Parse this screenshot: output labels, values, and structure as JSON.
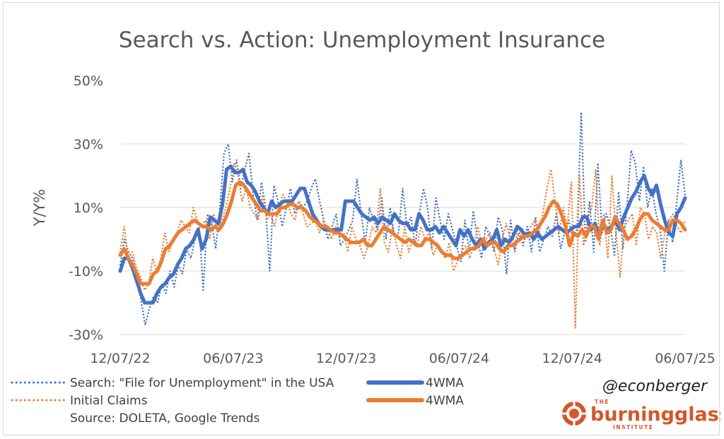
{
  "chart_data": {
    "type": "line",
    "title": "Search vs. Action: Unemployment Insurance",
    "ylabel": "Y/Y%",
    "xlabel": "",
    "ylim": [
      -30,
      50
    ],
    "y_ticks": [
      "50%",
      "30%",
      "10%",
      "-10%",
      "-30%"
    ],
    "y_tick_values": [
      50,
      30,
      10,
      -10,
      -30
    ],
    "x_ticks": [
      "12/07/22",
      "06/07/23",
      "12/07/23",
      "06/07/24",
      "12/07/24",
      "06/07/25"
    ],
    "x_tick_values": [
      0,
      26,
      52,
      78,
      104,
      130
    ],
    "x_unit": "weeks",
    "grid": "horizontal",
    "legend_position": "bottom",
    "series": [
      {
        "name": "Search: \"File for Unemployment\" in the USA",
        "style": "dotted",
        "color": "#4472c4",
        "values": [
          -8,
          0,
          -4,
          -6,
          -12,
          -19,
          -27,
          -22,
          -18,
          -20,
          -14,
          -17,
          -10,
          -15,
          -8,
          -11,
          -3,
          -6,
          0,
          4,
          -16,
          8,
          5,
          -3,
          10,
          27,
          30,
          18,
          25,
          16,
          22,
          27,
          14,
          6,
          18,
          10,
          -10,
          17,
          12,
          4,
          10,
          16,
          8,
          12,
          10,
          12,
          16,
          19,
          12,
          6,
          0,
          4,
          8,
          -2,
          0,
          3,
          6,
          19,
          8,
          -1,
          10,
          6,
          3,
          13,
          0,
          10,
          1,
          2,
          16,
          4,
          7,
          -2,
          8,
          16,
          10,
          -3,
          13,
          6,
          0,
          8,
          3,
          -2,
          -7,
          6,
          -4,
          9,
          0,
          -6,
          4,
          1,
          -4,
          7,
          3,
          -11,
          6,
          -4,
          2,
          -2,
          4,
          -4,
          7,
          -4,
          0,
          4,
          1,
          8,
          -3,
          2,
          6,
          0,
          3,
          40,
          -1,
          12,
          -4,
          24,
          2,
          8,
          4,
          -5,
          15,
          -3,
          10,
          28,
          24,
          12,
          23,
          10,
          16,
          8,
          3,
          -10,
          6,
          -1,
          12,
          25,
          14
        ],
        "smoothed_name": "4WMA",
        "smoothed": [
          -10,
          -6,
          -6,
          -9,
          -13,
          -17,
          -20,
          -20,
          -20,
          -17,
          -15,
          -14,
          -12,
          -11,
          -8,
          -6,
          -3,
          -2,
          0,
          3,
          -3,
          0,
          7,
          6,
          5,
          11,
          22,
          23,
          21,
          21,
          22,
          18,
          17,
          15,
          12,
          10,
          8,
          12,
          10,
          11,
          12,
          12,
          12,
          14,
          16,
          16,
          12,
          8,
          6,
          4,
          3,
          3,
          3,
          3,
          3,
          12,
          12,
          12,
          10,
          8,
          7,
          6,
          7,
          5,
          7,
          6,
          5,
          8,
          6,
          5,
          5,
          3,
          3,
          8,
          6,
          3,
          3,
          4,
          2,
          4,
          2,
          0,
          -2,
          3,
          1,
          3,
          0,
          -2,
          0,
          -3,
          -1,
          0,
          3,
          -2,
          0,
          -1,
          1,
          4,
          3,
          1,
          2,
          0,
          2,
          0,
          1,
          2,
          3,
          4,
          3,
          2,
          3,
          4,
          4,
          7,
          7,
          3,
          5,
          1,
          5,
          3,
          4,
          6,
          3,
          7,
          10,
          13,
          15,
          18,
          20,
          16,
          14,
          17,
          11,
          6,
          2,
          1,
          8,
          10,
          13
        ],
        "smoothed_color": "#4472c4"
      },
      {
        "name": "Initial Claims",
        "style": "dotted",
        "color": "#ed7d31",
        "values": [
          -4,
          4,
          -6,
          -4,
          -9,
          -12,
          -16,
          -14,
          -6,
          -10,
          -6,
          2,
          -4,
          0,
          2,
          6,
          4,
          2,
          10,
          6,
          4,
          6,
          0,
          8,
          2,
          6,
          10,
          16,
          24,
          20,
          12,
          16,
          10,
          8,
          6,
          14,
          6,
          8,
          4,
          10,
          14,
          12,
          8,
          6,
          12,
          8,
          4,
          5,
          6,
          2,
          6,
          3,
          0,
          4,
          1,
          2,
          -4,
          4,
          0,
          -2,
          -6,
          -2,
          4,
          2,
          16,
          -1,
          -4,
          4,
          -2,
          -6,
          4,
          -4,
          0,
          -2,
          4,
          0,
          2,
          -5,
          -2,
          -4,
          -6,
          -1,
          -10,
          -7,
          -4,
          -2,
          -6,
          -2,
          4,
          -2,
          0,
          2,
          -3,
          -8,
          0,
          5,
          0,
          -3,
          4,
          0,
          2,
          4,
          6,
          2,
          8,
          16,
          22,
          12,
          2,
          10,
          4,
          18,
          -28,
          20,
          -2,
          6,
          10,
          22,
          -2,
          8,
          -6,
          20,
          2,
          -12,
          4,
          6,
          8,
          -2,
          10,
          8,
          0,
          4,
          2,
          -6,
          2,
          6,
          8,
          4,
          2,
          6
        ],
        "smoothed_name": "4WMA",
        "smoothed": [
          -5,
          -3,
          -6,
          -8,
          -11,
          -14,
          -14,
          -14,
          -11,
          -10,
          -7,
          -3,
          -2,
          0,
          2,
          3,
          4,
          5,
          6,
          5,
          4,
          4,
          3,
          4,
          3,
          5,
          8,
          12,
          17,
          18,
          17,
          15,
          13,
          11,
          9,
          9,
          8,
          8,
          8,
          10,
          10,
          11,
          11,
          10,
          10,
          9,
          7,
          6,
          5,
          4,
          4,
          3,
          2,
          2,
          1,
          0,
          -1,
          -1,
          -1,
          0,
          -2,
          -2,
          0,
          2,
          4,
          3,
          2,
          1,
          0,
          -1,
          0,
          -1,
          -2,
          -2,
          0,
          0,
          -1,
          -2,
          -4,
          -5,
          -5,
          -6,
          -6,
          -5,
          -4,
          -3,
          -3,
          -2,
          0,
          -2,
          -1,
          -1,
          -3,
          -4,
          -2,
          -2,
          -1,
          0,
          1,
          1,
          2,
          3,
          5,
          7,
          10,
          12,
          11,
          8,
          4,
          -2,
          2,
          1,
          3,
          1,
          4,
          4,
          0,
          6,
          2,
          3,
          7,
          5,
          3,
          0,
          1,
          3,
          6,
          8,
          8,
          6,
          5,
          4,
          3,
          3,
          6,
          6,
          5,
          3
        ],
        "smoothed_color": "#ed7d31"
      }
    ],
    "source": "Source: DOLETA, Google Trends"
  },
  "legend": {
    "search_label": "Search: \"File for Unemployment\" in the USA",
    "search_4wma_label": "4WMA",
    "claims_label": "Initial Claims",
    "claims_4wma_label": "4WMA",
    "source": "Source: DOLETA, Google Trends"
  },
  "branding": {
    "handle": "@econberger",
    "logo_small_top": "THE",
    "logo_word": "burningglass",
    "logo_small_bottom": "INSTITUTE",
    "logo_color": "#d4572a"
  }
}
